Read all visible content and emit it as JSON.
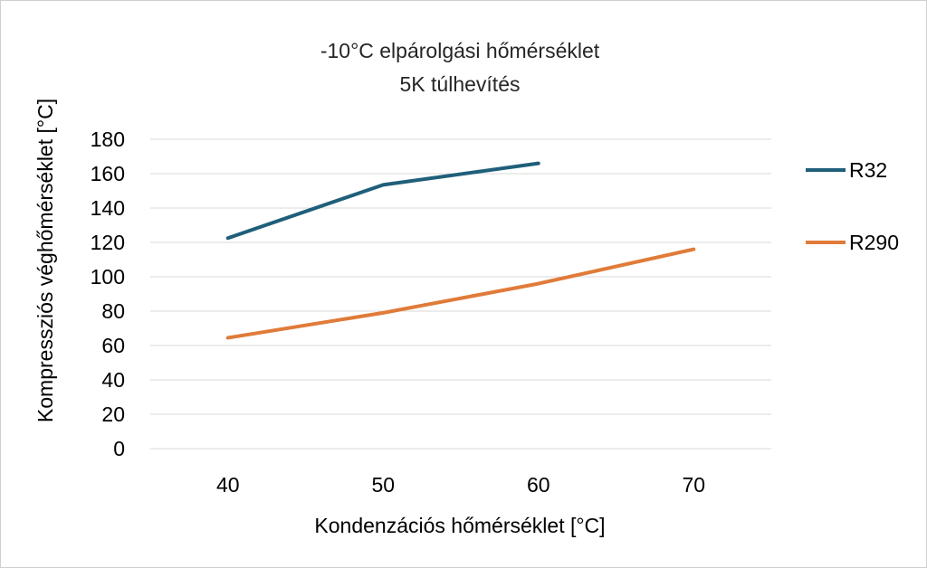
{
  "chart_data": {
    "type": "line",
    "title_lines": [
      "-10°C elpárolgási hőmérséklet",
      "5K túlhevítés"
    ],
    "xlabel": "Kondenzációs hőmérséklet [°C]",
    "ylabel": "Kompressziós véghőmérséklet [°C]",
    "categories": [
      "40",
      "50",
      "60",
      "70"
    ],
    "ylim": [
      0,
      180
    ],
    "yticks": [
      "0",
      "20",
      "40",
      "60",
      "80",
      "100",
      "120",
      "140",
      "160",
      "180"
    ],
    "grid": true,
    "legend_position": "right",
    "series": [
      {
        "name": "R32",
        "color": "#1f5f7a",
        "values": [
          122.5,
          153.5,
          166,
          null
        ]
      },
      {
        "name": "R290",
        "color": "#e07b39",
        "values": [
          64.5,
          79,
          96,
          116
        ]
      }
    ]
  }
}
